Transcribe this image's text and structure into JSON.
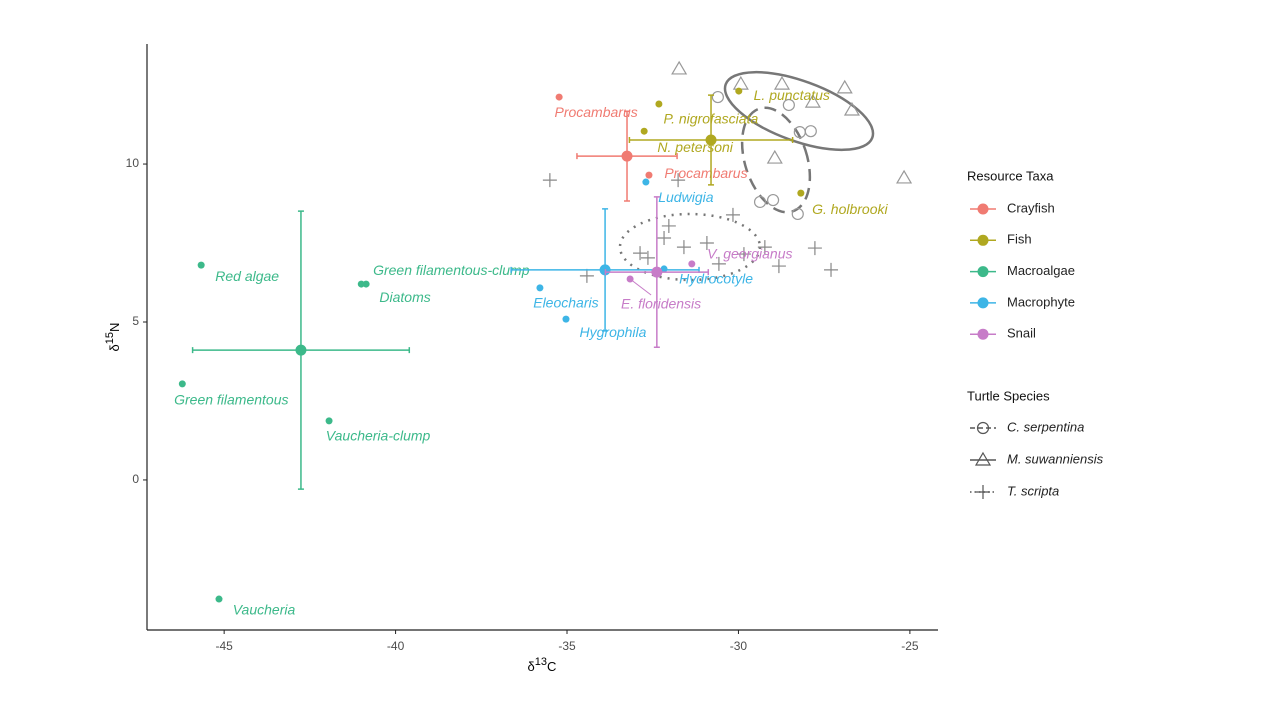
{
  "chart_data": {
    "type": "scatter",
    "x_label_parts": [
      "δ",
      "13",
      "C"
    ],
    "y_label_parts": [
      "δ",
      "15",
      "N"
    ],
    "xlim": [
      -47.25,
      -24.18
    ],
    "ylim": [
      -4.75,
      13.8
    ],
    "xticks": [
      -45,
      -40,
      -35,
      -30,
      -25
    ],
    "yticks": [
      0,
      5,
      10
    ],
    "legend_title": "Resource Taxa",
    "series": [
      {
        "name": "Crayfish",
        "color": "#f07b72",
        "x": [
          -35.23,
          -32.61
        ],
        "y": [
          12.12,
          9.65
        ],
        "labels": [
          "Procambarus",
          "Procambarus"
        ],
        "mean": {
          "x": -33.25,
          "y": 10.25,
          "xerr": 1.46,
          "yerr": 1.42
        }
      },
      {
        "name": "Fish",
        "color": "#b0a820",
        "x": [
          -32.32,
          -32.75,
          -29.99,
          -28.18
        ],
        "y": [
          11.9,
          11.04,
          12.31,
          9.08
        ],
        "labels": [
          "P. nigrofasciata",
          "N. petersoni",
          "L. punctatus",
          "G. holbrooki"
        ],
        "mean": {
          "x": -30.8,
          "y": 10.76,
          "xerr": 2.38,
          "yerr": 1.42
        }
      },
      {
        "name": "Macroalgae",
        "color": "#3cb98a",
        "x": [
          -45.67,
          -41.0,
          -40.86,
          -46.22,
          -41.94,
          -45.15
        ],
        "y": [
          6.8,
          6.2,
          6.2,
          3.04,
          1.87,
          -3.77
        ],
        "labels": [
          "Red algae",
          "Green filamentous-clump",
          "Diatoms",
          "Green filamentous",
          "Vaucheria-clump",
          "Vaucheria"
        ],
        "mean": {
          "x": -42.76,
          "y": 4.11,
          "xerr": 3.16,
          "yerr": 4.4
        }
      },
      {
        "name": "Macrophyte",
        "color": "#3db5e6",
        "x": [
          -32.7,
          -35.79,
          -35.03,
          -32.17
        ],
        "y": [
          9.43,
          6.08,
          5.09,
          6.68
        ],
        "labels": [
          "Ludwigia",
          "Eleocharis",
          "Hygrophila",
          "Hydrocotyle"
        ],
        "mean": {
          "x": -33.89,
          "y": 6.65,
          "xerr": 2.74,
          "yerr": 1.93
        }
      },
      {
        "name": "Snail",
        "color": "#c77cc8",
        "x": [
          -31.36,
          -33.16
        ],
        "y": [
          6.84,
          6.36
        ],
        "labels": [
          "V. georgianus",
          "E. floridensis"
        ],
        "mean": {
          "x": -32.38,
          "y": 6.58,
          "xerr": 1.5,
          "yerr": 2.38
        }
      }
    ],
    "turtle_legend_title": "Turtle Species",
    "turtles": [
      {
        "name": "C. serpentina",
        "shape": "circle",
        "x": [
          -30.6,
          -28.53,
          -28.21,
          -27.89,
          -28.99,
          -29.37,
          -28.27
        ],
        "y": [
          12.12,
          11.87,
          11.01,
          11.04,
          8.86,
          8.8,
          8.42
        ]
      },
      {
        "name": "M. suwanniensis",
        "shape": "triangle",
        "x": [
          -31.73,
          -29.93,
          -28.73,
          -26.9,
          -27.83,
          -26.69,
          -28.94,
          -25.17
        ],
        "y": [
          13.01,
          12.53,
          12.53,
          12.41,
          11.96,
          11.71,
          10.19,
          9.56
        ]
      },
      {
        "name": "T. scripta",
        "shape": "cross",
        "x": [
          -35.5,
          -34.42,
          -32.87,
          -32.17,
          -32.03,
          -31.59,
          -30.92,
          -30.16,
          -29.23,
          -27.77,
          -27.3,
          -28.82,
          -32.64,
          -31.76,
          -29.84,
          -30.57
        ],
        "y": [
          9.49,
          6.46,
          7.18,
          7.66,
          8.04,
          7.37,
          7.5,
          8.39,
          7.37,
          7.34,
          6.65,
          6.77,
          7.03,
          9.49,
          7.15,
          6.84
        ]
      }
    ]
  }
}
